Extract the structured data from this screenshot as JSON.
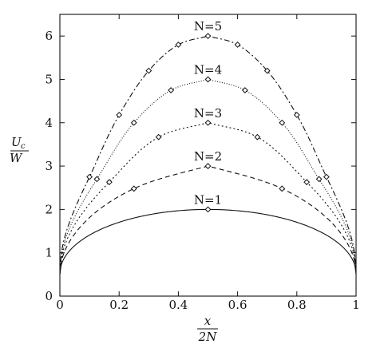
{
  "chart_data": {
    "type": "line",
    "title": "",
    "xlabel": {
      "numerator": "x",
      "denominator": "2N"
    },
    "ylabel": {
      "numerator": "U",
      "subscript": "c",
      "denominator": "W"
    },
    "xlim": [
      0,
      1
    ],
    "ylim": [
      0,
      6.5
    ],
    "xticks": [
      0,
      0.2,
      0.4,
      0.6,
      0.8,
      1
    ],
    "xtick_labels": [
      "0",
      "0.2",
      "0.4",
      "0.6",
      "0.8",
      "1"
    ],
    "yticks": [
      0,
      1,
      2,
      3,
      4,
      5,
      6
    ],
    "ytick_labels": [
      "0",
      "1",
      "2",
      "3",
      "4",
      "5",
      "6"
    ],
    "grid": false,
    "legend": "none",
    "series": [
      {
        "name": "N=1",
        "line_style": "solid",
        "marker": "diamond",
        "x": [
          0.5
        ],
        "y": [
          2.0
        ]
      },
      {
        "name": "N=2",
        "line_style": "dashed",
        "marker": "diamond",
        "x": [
          0.25,
          0.5,
          0.75
        ],
        "y": [
          2.48,
          3.0,
          2.48
        ]
      },
      {
        "name": "N=3",
        "line_style": "dotted",
        "marker": "diamond",
        "x": [
          0.1667,
          0.3333,
          0.5,
          0.6667,
          0.8333
        ],
        "y": [
          2.63,
          3.67,
          4.0,
          3.67,
          2.63
        ]
      },
      {
        "name": "N=4",
        "line_style": "fine-dotted",
        "marker": "diamond",
        "x": [
          0.125,
          0.25,
          0.375,
          0.5,
          0.625,
          0.75,
          0.875
        ],
        "y": [
          2.7,
          4.0,
          4.75,
          5.0,
          4.75,
          4.0,
          2.7
        ]
      },
      {
        "name": "N=5",
        "line_style": "dash-dot",
        "marker": "diamond",
        "x": [
          0.1,
          0.2,
          0.3,
          0.4,
          0.5,
          0.6,
          0.7,
          0.8,
          0.9
        ],
        "y": [
          2.75,
          4.18,
          5.2,
          5.8,
          6.0,
          5.8,
          5.2,
          4.18,
          2.75
        ]
      }
    ],
    "colors": {
      "line": "#111111",
      "marker": "#111111"
    }
  }
}
